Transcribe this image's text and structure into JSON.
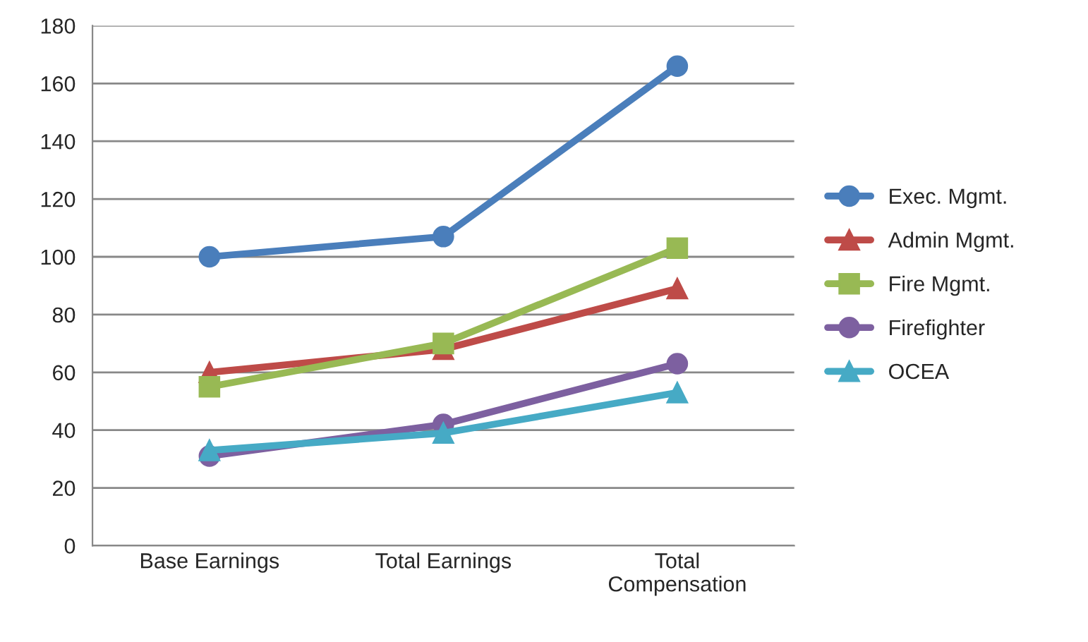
{
  "chart_data": {
    "type": "line",
    "categories": [
      "Base Earnings",
      "Total Earnings",
      "Total\nCompensation"
    ],
    "series": [
      {
        "name": "Exec. Mgmt.",
        "color": "#4a7ebb",
        "marker": "circle",
        "values": [
          100,
          107,
          166
        ]
      },
      {
        "name": "Admin Mgmt.",
        "color": "#be4b48",
        "marker": "triangle",
        "values": [
          60,
          68,
          89
        ]
      },
      {
        "name": "Fire Mgmt.",
        "color": "#98b954",
        "marker": "square",
        "values": [
          55,
          70,
          103
        ]
      },
      {
        "name": "Firefighter",
        "color": "#7d60a0",
        "marker": "circle",
        "values": [
          31,
          42,
          63
        ]
      },
      {
        "name": "OCEA",
        "color": "#46aac5",
        "marker": "triangle",
        "values": [
          33,
          39,
          53
        ]
      }
    ],
    "ylim": [
      0,
      180
    ],
    "yticks": [
      0,
      20,
      40,
      60,
      80,
      100,
      120,
      140,
      160,
      180
    ],
    "grid": "y",
    "legend": "right",
    "line_style": "solid"
  }
}
